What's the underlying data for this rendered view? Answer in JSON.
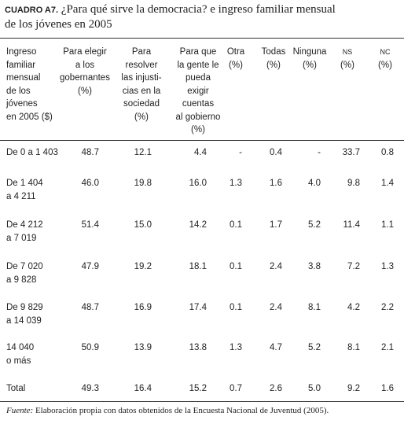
{
  "title": {
    "label": "CUADRO A7.",
    "text": "¿Para qué sirve la democracia? e ingreso familiar mensual",
    "text2": "de los jóvenes en 2005"
  },
  "table": {
    "header": [
      [
        "Ingreso",
        "familiar",
        "mensual",
        "de los",
        "jóvenes",
        "en 2005 ($)"
      ],
      [
        "Para elegir",
        "a los",
        "gobernantes",
        "(%)"
      ],
      [
        "Para",
        "resolver",
        "las injusti-",
        "cias en la",
        "sociedad",
        "(%)"
      ],
      [
        "Para que",
        "la gente le",
        "pueda",
        "exigir",
        "cuentas",
        "al gobierno",
        "(%)"
      ],
      [
        "Otra",
        "(%)"
      ],
      [
        "Todas",
        "(%)"
      ],
      [
        "Ninguna",
        "(%)"
      ],
      [
        "NS",
        "(%)"
      ],
      [
        "NC",
        "(%)"
      ]
    ],
    "rows": [
      [
        [
          "De 0 a 1 403"
        ],
        "48.7",
        "12.1",
        "4.4",
        "-",
        "0.4",
        "-",
        "33.7",
        "0.8"
      ],
      [
        [
          "De 1 404",
          "a 4 211"
        ],
        "46.0",
        "19.8",
        "16.0",
        "1.3",
        "1.6",
        "4.0",
        "9.8",
        "1.4"
      ],
      [
        [
          "De 4 212",
          "a 7 019"
        ],
        "51.4",
        "15.0",
        "14.2",
        "0.1",
        "1.7",
        "5.2",
        "11.4",
        "1.1"
      ],
      [
        [
          "De 7 020",
          "a 9 828"
        ],
        "47.9",
        "19.2",
        "18.1",
        "0.1",
        "2.4",
        "3.8",
        "7.2",
        "1.3"
      ],
      [
        [
          "De 9 829",
          "a 14 039"
        ],
        "48.7",
        "16.9",
        "17.4",
        "0.1",
        "2.4",
        "8.1",
        "4.2",
        "2.2"
      ],
      [
        [
          "14 040",
          "o más"
        ],
        "50.9",
        "13.9",
        "13.8",
        "1.3",
        "4.7",
        "5.2",
        "8.1",
        "2.1"
      ],
      [
        [
          "Total"
        ],
        "49.3",
        "16.4",
        "15.2",
        "0.7",
        "2.6",
        "5.0",
        "9.2",
        "1.6"
      ]
    ]
  },
  "footnote": {
    "label": "Fuente:",
    "text": " Elaboración propia con datos obtenidos de la Encuesta Nacional de Juventud (2005)."
  }
}
